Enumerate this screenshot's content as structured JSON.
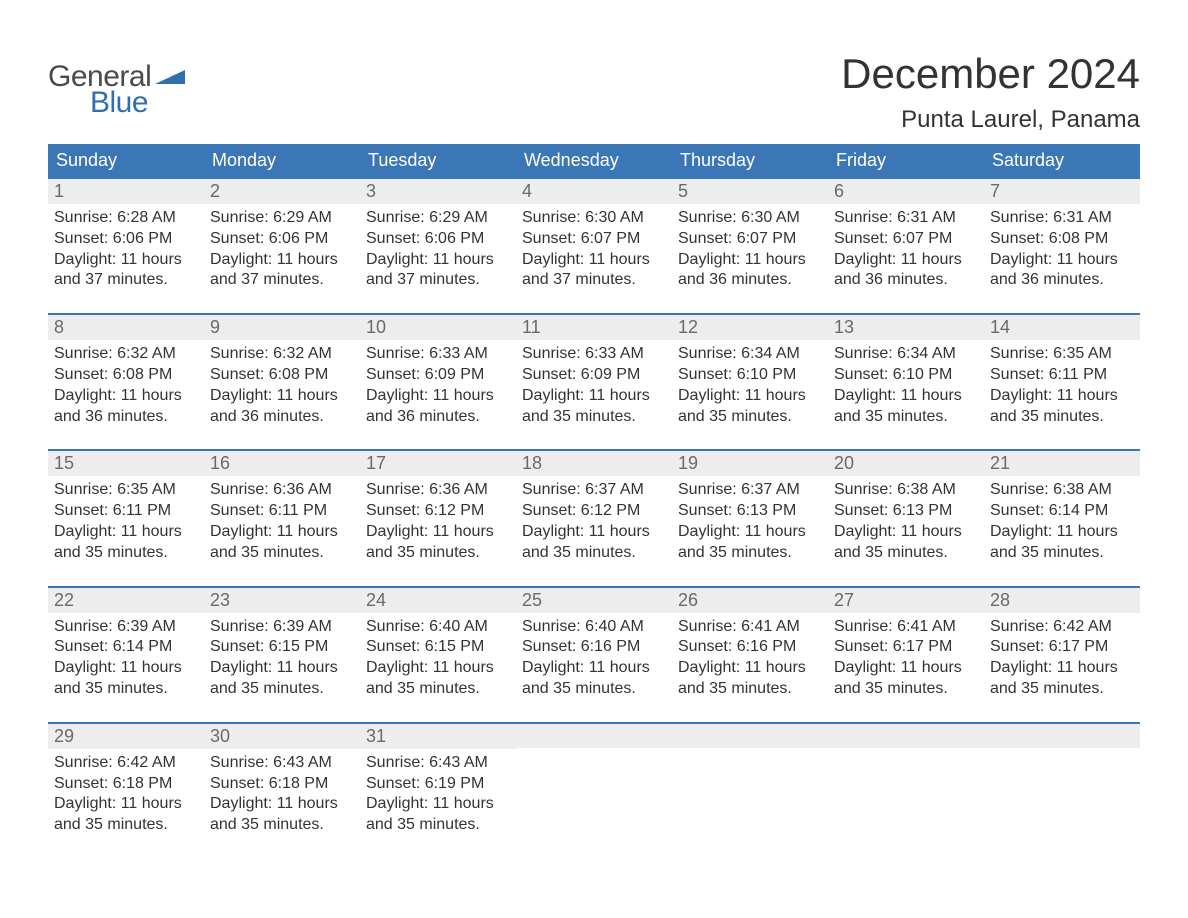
{
  "brand": {
    "word1": "General",
    "word2": "Blue",
    "word1_color": "#4a4a4a",
    "word2_color": "#2f6fae",
    "flag_color": "#2f6fae"
  },
  "header": {
    "title": "December 2024",
    "location": "Punta Laurel, Panama"
  },
  "colors": {
    "header_bar_bg": "#3b77b6",
    "header_bar_text": "#ffffff",
    "daynum_strip_bg": "#ededed",
    "daynum_text": "#6a6a6a",
    "body_text": "#333333",
    "page_bg": "#ffffff",
    "week_border": "#3b77b6"
  },
  "typography": {
    "title_fontsize": 42,
    "location_fontsize": 24,
    "weekday_fontsize": 18,
    "daynum_fontsize": 18,
    "body_fontsize": 16,
    "logo_fontsize": 30,
    "font_family": "Arial"
  },
  "calendar": {
    "type": "table",
    "columns": [
      "Sunday",
      "Monday",
      "Tuesday",
      "Wednesday",
      "Thursday",
      "Friday",
      "Saturday"
    ],
    "weeks": [
      [
        {
          "day": "1",
          "sunrise": "Sunrise: 6:28 AM",
          "sunset": "Sunset: 6:06 PM",
          "dl1": "Daylight: 11 hours",
          "dl2": "and 37 minutes."
        },
        {
          "day": "2",
          "sunrise": "Sunrise: 6:29 AM",
          "sunset": "Sunset: 6:06 PM",
          "dl1": "Daylight: 11 hours",
          "dl2": "and 37 minutes."
        },
        {
          "day": "3",
          "sunrise": "Sunrise: 6:29 AM",
          "sunset": "Sunset: 6:06 PM",
          "dl1": "Daylight: 11 hours",
          "dl2": "and 37 minutes."
        },
        {
          "day": "4",
          "sunrise": "Sunrise: 6:30 AM",
          "sunset": "Sunset: 6:07 PM",
          "dl1": "Daylight: 11 hours",
          "dl2": "and 37 minutes."
        },
        {
          "day": "5",
          "sunrise": "Sunrise: 6:30 AM",
          "sunset": "Sunset: 6:07 PM",
          "dl1": "Daylight: 11 hours",
          "dl2": "and 36 minutes."
        },
        {
          "day": "6",
          "sunrise": "Sunrise: 6:31 AM",
          "sunset": "Sunset: 6:07 PM",
          "dl1": "Daylight: 11 hours",
          "dl2": "and 36 minutes."
        },
        {
          "day": "7",
          "sunrise": "Sunrise: 6:31 AM",
          "sunset": "Sunset: 6:08 PM",
          "dl1": "Daylight: 11 hours",
          "dl2": "and 36 minutes."
        }
      ],
      [
        {
          "day": "8",
          "sunrise": "Sunrise: 6:32 AM",
          "sunset": "Sunset: 6:08 PM",
          "dl1": "Daylight: 11 hours",
          "dl2": "and 36 minutes."
        },
        {
          "day": "9",
          "sunrise": "Sunrise: 6:32 AM",
          "sunset": "Sunset: 6:08 PM",
          "dl1": "Daylight: 11 hours",
          "dl2": "and 36 minutes."
        },
        {
          "day": "10",
          "sunrise": "Sunrise: 6:33 AM",
          "sunset": "Sunset: 6:09 PM",
          "dl1": "Daylight: 11 hours",
          "dl2": "and 36 minutes."
        },
        {
          "day": "11",
          "sunrise": "Sunrise: 6:33 AM",
          "sunset": "Sunset: 6:09 PM",
          "dl1": "Daylight: 11 hours",
          "dl2": "and 35 minutes."
        },
        {
          "day": "12",
          "sunrise": "Sunrise: 6:34 AM",
          "sunset": "Sunset: 6:10 PM",
          "dl1": "Daylight: 11 hours",
          "dl2": "and 35 minutes."
        },
        {
          "day": "13",
          "sunrise": "Sunrise: 6:34 AM",
          "sunset": "Sunset: 6:10 PM",
          "dl1": "Daylight: 11 hours",
          "dl2": "and 35 minutes."
        },
        {
          "day": "14",
          "sunrise": "Sunrise: 6:35 AM",
          "sunset": "Sunset: 6:11 PM",
          "dl1": "Daylight: 11 hours",
          "dl2": "and 35 minutes."
        }
      ],
      [
        {
          "day": "15",
          "sunrise": "Sunrise: 6:35 AM",
          "sunset": "Sunset: 6:11 PM",
          "dl1": "Daylight: 11 hours",
          "dl2": "and 35 minutes."
        },
        {
          "day": "16",
          "sunrise": "Sunrise: 6:36 AM",
          "sunset": "Sunset: 6:11 PM",
          "dl1": "Daylight: 11 hours",
          "dl2": "and 35 minutes."
        },
        {
          "day": "17",
          "sunrise": "Sunrise: 6:36 AM",
          "sunset": "Sunset: 6:12 PM",
          "dl1": "Daylight: 11 hours",
          "dl2": "and 35 minutes."
        },
        {
          "day": "18",
          "sunrise": "Sunrise: 6:37 AM",
          "sunset": "Sunset: 6:12 PM",
          "dl1": "Daylight: 11 hours",
          "dl2": "and 35 minutes."
        },
        {
          "day": "19",
          "sunrise": "Sunrise: 6:37 AM",
          "sunset": "Sunset: 6:13 PM",
          "dl1": "Daylight: 11 hours",
          "dl2": "and 35 minutes."
        },
        {
          "day": "20",
          "sunrise": "Sunrise: 6:38 AM",
          "sunset": "Sunset: 6:13 PM",
          "dl1": "Daylight: 11 hours",
          "dl2": "and 35 minutes."
        },
        {
          "day": "21",
          "sunrise": "Sunrise: 6:38 AM",
          "sunset": "Sunset: 6:14 PM",
          "dl1": "Daylight: 11 hours",
          "dl2": "and 35 minutes."
        }
      ],
      [
        {
          "day": "22",
          "sunrise": "Sunrise: 6:39 AM",
          "sunset": "Sunset: 6:14 PM",
          "dl1": "Daylight: 11 hours",
          "dl2": "and 35 minutes."
        },
        {
          "day": "23",
          "sunrise": "Sunrise: 6:39 AM",
          "sunset": "Sunset: 6:15 PM",
          "dl1": "Daylight: 11 hours",
          "dl2": "and 35 minutes."
        },
        {
          "day": "24",
          "sunrise": "Sunrise: 6:40 AM",
          "sunset": "Sunset: 6:15 PM",
          "dl1": "Daylight: 11 hours",
          "dl2": "and 35 minutes."
        },
        {
          "day": "25",
          "sunrise": "Sunrise: 6:40 AM",
          "sunset": "Sunset: 6:16 PM",
          "dl1": "Daylight: 11 hours",
          "dl2": "and 35 minutes."
        },
        {
          "day": "26",
          "sunrise": "Sunrise: 6:41 AM",
          "sunset": "Sunset: 6:16 PM",
          "dl1": "Daylight: 11 hours",
          "dl2": "and 35 minutes."
        },
        {
          "day": "27",
          "sunrise": "Sunrise: 6:41 AM",
          "sunset": "Sunset: 6:17 PM",
          "dl1": "Daylight: 11 hours",
          "dl2": "and 35 minutes."
        },
        {
          "day": "28",
          "sunrise": "Sunrise: 6:42 AM",
          "sunset": "Sunset: 6:17 PM",
          "dl1": "Daylight: 11 hours",
          "dl2": "and 35 minutes."
        }
      ],
      [
        {
          "day": "29",
          "sunrise": "Sunrise: 6:42 AM",
          "sunset": "Sunset: 6:18 PM",
          "dl1": "Daylight: 11 hours",
          "dl2": "and 35 minutes."
        },
        {
          "day": "30",
          "sunrise": "Sunrise: 6:43 AM",
          "sunset": "Sunset: 6:18 PM",
          "dl1": "Daylight: 11 hours",
          "dl2": "and 35 minutes."
        },
        {
          "day": "31",
          "sunrise": "Sunrise: 6:43 AM",
          "sunset": "Sunset: 6:19 PM",
          "dl1": "Daylight: 11 hours",
          "dl2": "and 35 minutes."
        },
        null,
        null,
        null,
        null
      ]
    ]
  }
}
